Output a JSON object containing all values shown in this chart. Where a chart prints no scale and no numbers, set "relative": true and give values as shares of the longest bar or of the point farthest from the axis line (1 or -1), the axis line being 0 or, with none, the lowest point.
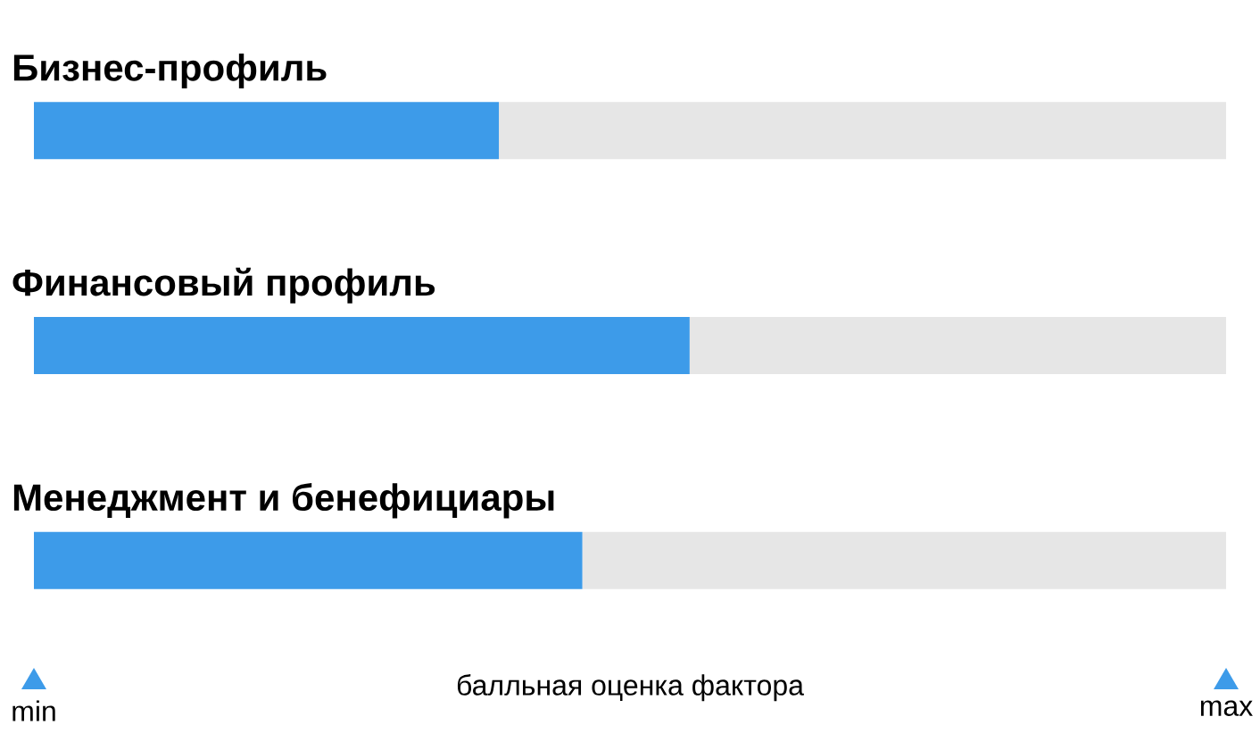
{
  "chart_data": {
    "type": "bar",
    "orientation": "horizontal",
    "stacked": true,
    "relative": true,
    "categories": [
      "Бизнес-профиль",
      "Финансовый профиль",
      "Менеджмент и бенефициары"
    ],
    "series": [
      {
        "color": "#3d9be9",
        "values": [
          0.39,
          0.55,
          0.46
        ]
      },
      {
        "color": "#e6e6e6",
        "values": [
          0.61,
          0.45,
          0.54
        ]
      }
    ],
    "xlabel": "балльная оценка фактора",
    "annotations": [
      "min",
      "max"
    ]
  }
}
